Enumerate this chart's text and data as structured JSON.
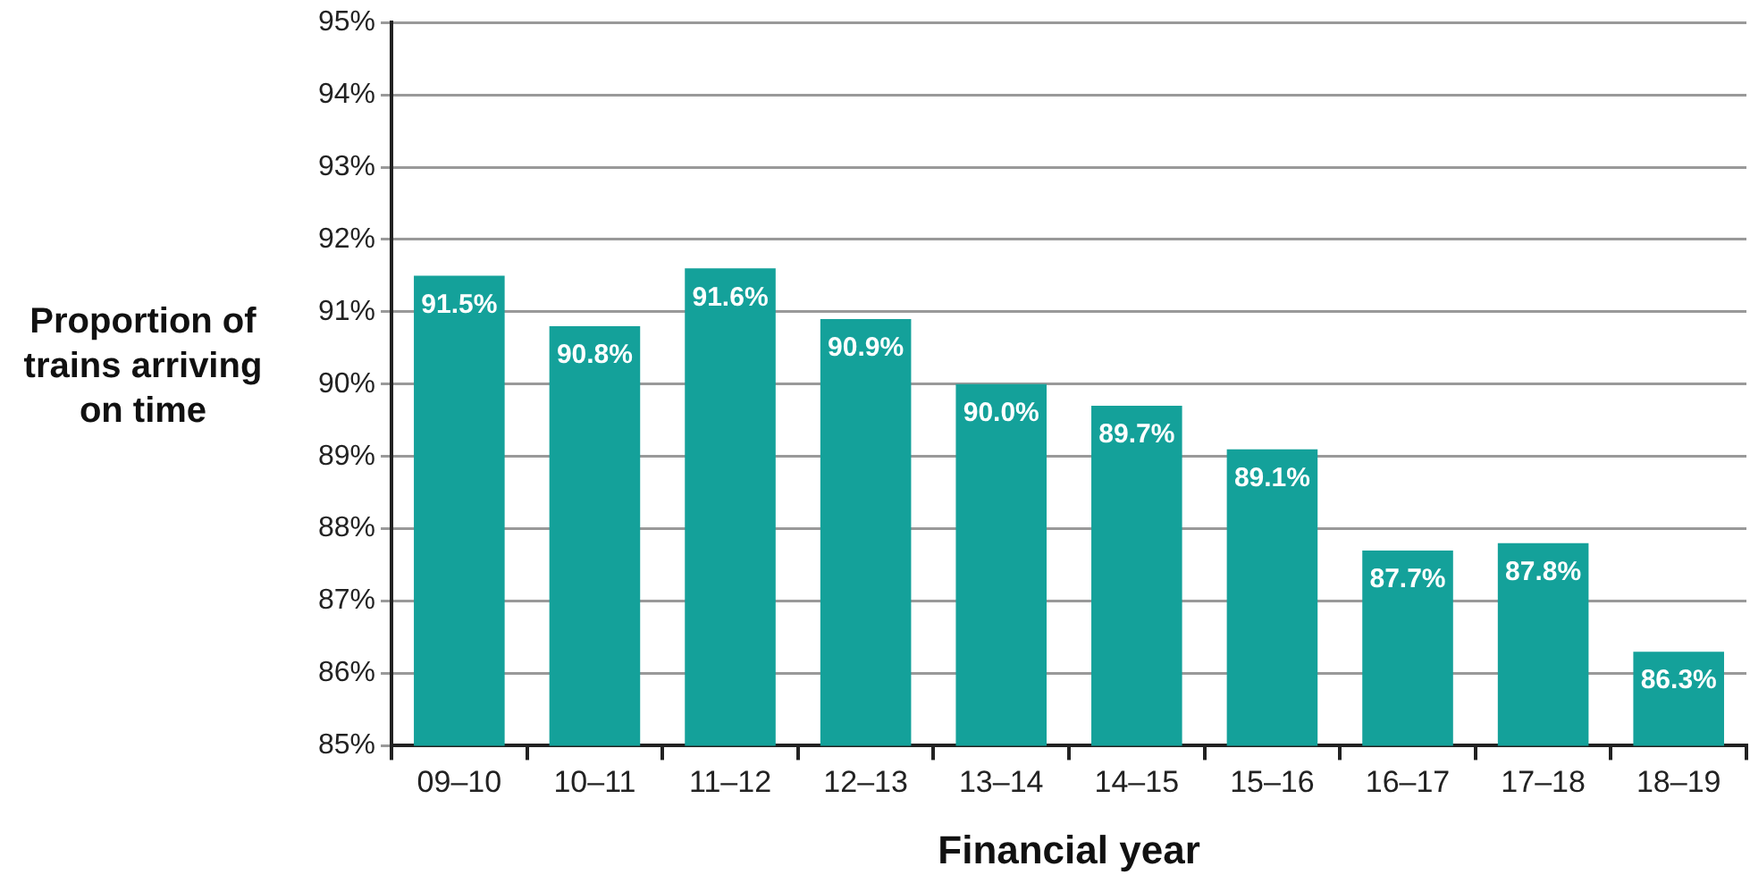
{
  "chart_data": {
    "type": "bar",
    "xlabel": "Financial year",
    "ylabel": "Proportion of trains arriving on time",
    "categories": [
      "09–10",
      "10–11",
      "11–12",
      "12–13",
      "13–14",
      "14–15",
      "15–16",
      "16–17",
      "17–18",
      "18–19"
    ],
    "values": [
      91.5,
      90.8,
      91.6,
      90.9,
      90.0,
      89.7,
      89.1,
      87.7,
      87.8,
      86.3
    ],
    "value_labels": [
      "91.5%",
      "90.8%",
      "91.6%",
      "90.9%",
      "90.0%",
      "89.7%",
      "89.1%",
      "87.7%",
      "87.8%",
      "86.3%"
    ],
    "color": "#14a19a",
    "ylim": [
      85,
      95
    ],
    "yticks": [
      {
        "value": 85,
        "label": "85%"
      },
      {
        "value": 86,
        "label": "86%"
      },
      {
        "value": 87,
        "label": "87%"
      },
      {
        "value": 88,
        "label": "88%"
      },
      {
        "value": 89,
        "label": "89%"
      },
      {
        "value": 90,
        "label": "90%"
      },
      {
        "value": 91,
        "label": "91%"
      },
      {
        "value": 92,
        "label": "92%"
      },
      {
        "value": 93,
        "label": "93%"
      },
      {
        "value": 94,
        "label": "94%"
      },
      {
        "value": 95,
        "label": "95%"
      }
    ],
    "grid": "y",
    "legend": false
  }
}
